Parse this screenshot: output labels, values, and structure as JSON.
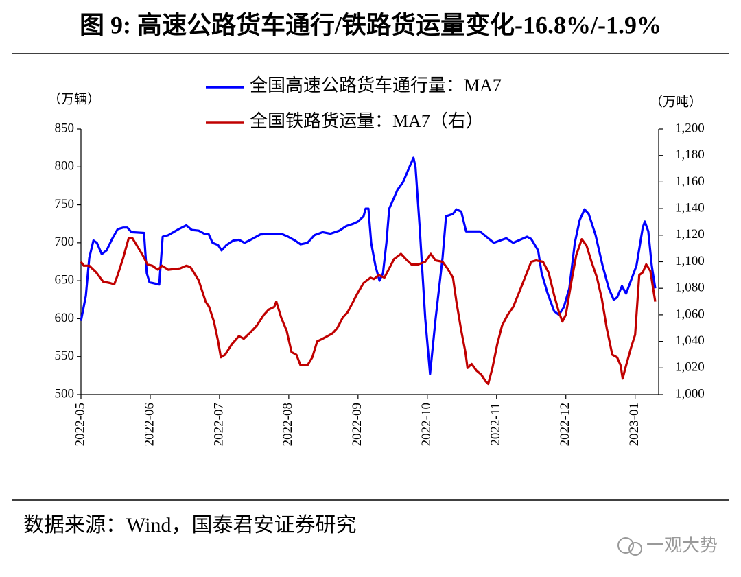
{
  "chart_data": {
    "type": "line",
    "title": "图 9: 高速公路货车通行/铁路货运量变化-16.8%/-1.9%",
    "y_label": "（万辆）",
    "y2_label": "（万吨）",
    "source": "数据来源：Wind，国泰君安证券研究",
    "watermark": "一观大势",
    "xlim": [
      0,
      8.34
    ],
    "xticks": [
      {
        "value": 0,
        "label": "2022-05"
      },
      {
        "value": 1,
        "label": "2022-06"
      },
      {
        "value": 2,
        "label": "2022-07"
      },
      {
        "value": 3,
        "label": "2022-08"
      },
      {
        "value": 4,
        "label": "2022-09"
      },
      {
        "value": 5,
        "label": "2022-10"
      },
      {
        "value": 6,
        "label": "2022-11"
      },
      {
        "value": 7,
        "label": "2022-12"
      },
      {
        "value": 8,
        "label": "2023-01"
      }
    ],
    "ylim": [
      500,
      850
    ],
    "yticks": [
      500,
      550,
      600,
      650,
      700,
      750,
      800,
      850
    ],
    "y2lim": [
      1000,
      1200
    ],
    "y2ticks": [
      {
        "value": 1000,
        "label": "1,000"
      },
      {
        "value": 1020,
        "label": "1,020"
      },
      {
        "value": 1040,
        "label": "1,040"
      },
      {
        "value": 1060,
        "label": "1,060"
      },
      {
        "value": 1080,
        "label": "1,080"
      },
      {
        "value": 1100,
        "label": "1,100"
      },
      {
        "value": 1120,
        "label": "1,120"
      },
      {
        "value": 1140,
        "label": "1,140"
      },
      {
        "value": 1160,
        "label": "1,160"
      },
      {
        "value": 1180,
        "label": "1,180"
      },
      {
        "value": 1200,
        "label": "1,200"
      }
    ],
    "grid": false,
    "series": [
      {
        "name": "全国高速公路货车通行量：MA7",
        "color": "#0000ff",
        "axis": "y",
        "x": [
          0,
          0.07,
          0.12,
          0.18,
          0.23,
          0.3,
          0.37,
          0.45,
          0.53,
          0.61,
          0.67,
          0.73,
          0.91,
          0.95,
          0.99,
          1.13,
          1.18,
          1.26,
          1.41,
          1.52,
          1.6,
          1.7,
          1.78,
          1.84,
          1.9,
          1.98,
          2.03,
          2.1,
          2.2,
          2.28,
          2.36,
          2.45,
          2.59,
          2.74,
          2.89,
          2.99,
          3.09,
          3.17,
          3.27,
          3.37,
          3.49,
          3.6,
          3.73,
          3.83,
          3.93,
          4.0,
          4.08,
          4.11,
          4.15,
          4.19,
          4.25,
          4.31,
          4.36,
          4.41,
          4.45,
          4.57,
          4.65,
          4.72,
          4.8,
          4.83,
          4.89,
          4.97,
          5.04,
          5.12,
          5.22,
          5.27,
          5.37,
          5.42,
          5.49,
          5.56,
          5.76,
          5.96,
          6.14,
          6.24,
          6.44,
          6.5,
          6.6,
          6.65,
          6.73,
          6.83,
          6.9,
          6.97,
          7.05,
          7.13,
          7.2,
          7.27,
          7.33,
          7.43,
          7.53,
          7.62,
          7.69,
          7.74,
          7.81,
          7.87,
          7.94,
          8.02,
          8.11,
          8.14,
          8.19,
          8.24,
          8.29
        ],
        "values": [
          597,
          630,
          680,
          703,
          700,
          685,
          690,
          705,
          718,
          720,
          720,
          714,
          713,
          660,
          648,
          645,
          708,
          710,
          718,
          723,
          717,
          716,
          712,
          712,
          700,
          697,
          690,
          697,
          703,
          704,
          700,
          704,
          711,
          712,
          712,
          708,
          703,
          698,
          700,
          710,
          714,
          712,
          716,
          722,
          725,
          728,
          735,
          745,
          745,
          700,
          670,
          650,
          660,
          700,
          745,
          770,
          780,
          795,
          812,
          800,
          720,
          600,
          527,
          600,
          680,
          735,
          738,
          744,
          741,
          715,
          715,
          700,
          706,
          700,
          708,
          705,
          690,
          660,
          635,
          610,
          605,
          615,
          640,
          700,
          730,
          744,
          738,
          710,
          670,
          640,
          625,
          628,
          643,
          633,
          650,
          670,
          720,
          728,
          715,
          670,
          640
        ]
      },
      {
        "name": "全国铁路货运量：MA7（右）",
        "color": "#c00000",
        "axis": "y2",
        "x": [
          0,
          0.04,
          0.12,
          0.22,
          0.32,
          0.42,
          0.48,
          0.53,
          0.61,
          0.69,
          0.74,
          0.81,
          0.89,
          0.96,
          1.03,
          1.11,
          1.17,
          1.26,
          1.43,
          1.52,
          1.58,
          1.7,
          1.8,
          1.85,
          1.92,
          1.98,
          2.02,
          2.08,
          2.18,
          2.28,
          2.35,
          2.45,
          2.54,
          2.64,
          2.71,
          2.79,
          2.82,
          2.89,
          2.97,
          3.04,
          3.11,
          3.17,
          3.27,
          3.34,
          3.41,
          3.49,
          3.56,
          3.63,
          3.7,
          3.78,
          3.85,
          3.93,
          3.99,
          4.08,
          4.18,
          4.23,
          4.3,
          4.38,
          4.46,
          4.52,
          4.62,
          4.69,
          4.77,
          4.87,
          4.97,
          5.05,
          5.12,
          5.22,
          5.29,
          5.37,
          5.42,
          5.49,
          5.55,
          5.58,
          5.64,
          5.71,
          5.78,
          5.84,
          5.88,
          5.94,
          6.01,
          6.08,
          6.16,
          6.24,
          6.31,
          6.41,
          6.5,
          6.57,
          6.67,
          6.75,
          6.83,
          6.9,
          6.95,
          7.0,
          7.08,
          7.15,
          7.23,
          7.3,
          7.37,
          7.45,
          7.52,
          7.59,
          7.67,
          7.74,
          7.79,
          7.82,
          7.86,
          7.94,
          8.0,
          8.06,
          8.11,
          8.16,
          8.22,
          8.29
        ],
        "values": [
          1100,
          1097,
          1097,
          1092,
          1085,
          1084,
          1083,
          1090,
          1103,
          1118,
          1118,
          1112,
          1105,
          1098,
          1097,
          1094,
          1097,
          1094,
          1095,
          1097,
          1096,
          1086,
          1070,
          1066,
          1055,
          1040,
          1028,
          1030,
          1038,
          1044,
          1042,
          1047,
          1052,
          1060,
          1064,
          1066,
          1070,
          1058,
          1048,
          1032,
          1030,
          1022,
          1022,
          1028,
          1040,
          1042,
          1044,
          1046,
          1050,
          1058,
          1062,
          1070,
          1076,
          1084,
          1088,
          1087,
          1090,
          1088,
          1096,
          1102,
          1106,
          1102,
          1098,
          1098,
          1100,
          1106,
          1101,
          1100,
          1095,
          1088,
          1070,
          1048,
          1032,
          1020,
          1023,
          1018,
          1015,
          1010,
          1008,
          1020,
          1038,
          1052,
          1060,
          1066,
          1075,
          1088,
          1100,
          1101,
          1100,
          1092,
          1075,
          1062,
          1055,
          1060,
          1085,
          1105,
          1117,
          1112,
          1100,
          1088,
          1072,
          1050,
          1030,
          1028,
          1022,
          1012,
          1020,
          1035,
          1045,
          1090,
          1092,
          1098,
          1093,
          1070
        ]
      }
    ]
  }
}
